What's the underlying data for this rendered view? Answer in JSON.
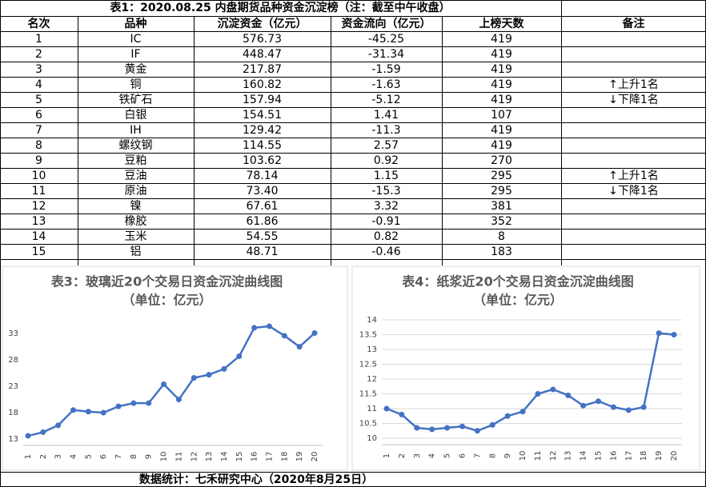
{
  "table": {
    "title": "表1：2020.08.25 内盘期货品种资金沉淀榜（注：截至中午收盘）",
    "header": [
      "名次",
      "品种",
      "沉淀资金（亿元）",
      "资金流向（亿元）",
      "上榜天数",
      "备注"
    ],
    "rows": [
      [
        "1",
        "IC",
        "576.73",
        "-45.25",
        "419"
      ],
      [
        "2",
        "IF",
        "448.47",
        "-31.34",
        "419"
      ],
      [
        "3",
        "黄金",
        "217.87",
        "-1.59",
        "419"
      ],
      [
        "4",
        "铜",
        "160.82",
        "-1.63",
        "419",
        "↑上升1名"
      ],
      [
        "5",
        "铁矿石",
        "157.94",
        "-5.12",
        "419",
        "↓下降1名"
      ],
      [
        "6",
        "白银",
        "154.51",
        "1.41",
        "107"
      ],
      [
        "7",
        "IH",
        "129.42",
        "-11.3",
        "419"
      ],
      [
        "8",
        "螺纹钢",
        "114.55",
        "2.57",
        "419"
      ],
      [
        "9",
        "豆粕",
        "103.62",
        "0.92",
        "270"
      ],
      [
        "10",
        "豆油",
        "78.14",
        "1.15",
        "295",
        "↑上升1名"
      ],
      [
        "11",
        "原油",
        "73.40",
        "-15.3",
        "295",
        "↓下降1名"
      ],
      [
        "12",
        "镍",
        "67.61",
        "3.32",
        "381"
      ],
      [
        "13",
        "橡胶",
        "61.86",
        "-0.91",
        "352"
      ],
      [
        "14",
        "玉米",
        "54.55",
        "0.82",
        "8"
      ],
      [
        "15",
        "铝",
        "48.71",
        "-0.46",
        "183"
      ]
    ]
  },
  "chart_data": [
    {
      "type": "line",
      "title": "表3：玻璃近20个交易日资金沉淀曲线图",
      "subtitle": "（单位：亿元）",
      "categories": [
        "1",
        "2",
        "3",
        "4",
        "5",
        "6",
        "7",
        "8",
        "9",
        "10",
        "11",
        "12",
        "13",
        "14",
        "15",
        "16",
        "17",
        "18",
        "19",
        "20"
      ],
      "values": [
        13.6,
        14.3,
        15.6,
        18.5,
        18.2,
        18.0,
        19.2,
        19.8,
        19.8,
        23.4,
        20.5,
        24.6,
        25.2,
        26.3,
        28.7,
        34.1,
        34.4,
        32.6,
        30.5,
        33.1
      ],
      "color": "#4472c4",
      "ylim": [
        13,
        35
      ],
      "yticks": [
        13,
        18,
        23,
        28,
        33
      ],
      "grid": false
    },
    {
      "type": "line",
      "title": "表4：纸浆近20个交易日资金沉淀曲线图",
      "subtitle": "（单位：亿元）",
      "categories": [
        "1",
        "2",
        "3",
        "4",
        "5",
        "6",
        "7",
        "8",
        "9",
        "10",
        "11",
        "12",
        "13",
        "14",
        "15",
        "16",
        "17",
        "18",
        "19",
        "20"
      ],
      "values": [
        11.0,
        10.8,
        10.35,
        10.3,
        10.35,
        10.4,
        10.25,
        10.45,
        10.75,
        10.9,
        11.5,
        11.65,
        11.45,
        11.1,
        11.25,
        11.05,
        10.95,
        11.05,
        13.55,
        13.5
      ],
      "color": "#4472c4",
      "ylim": [
        10,
        14
      ],
      "yticks": [
        10,
        10.5,
        11,
        11.5,
        12,
        12.5,
        13,
        13.5,
        14
      ],
      "grid": true
    }
  ],
  "footer": "数据统计：七禾研究中心（2020年8月25日）"
}
